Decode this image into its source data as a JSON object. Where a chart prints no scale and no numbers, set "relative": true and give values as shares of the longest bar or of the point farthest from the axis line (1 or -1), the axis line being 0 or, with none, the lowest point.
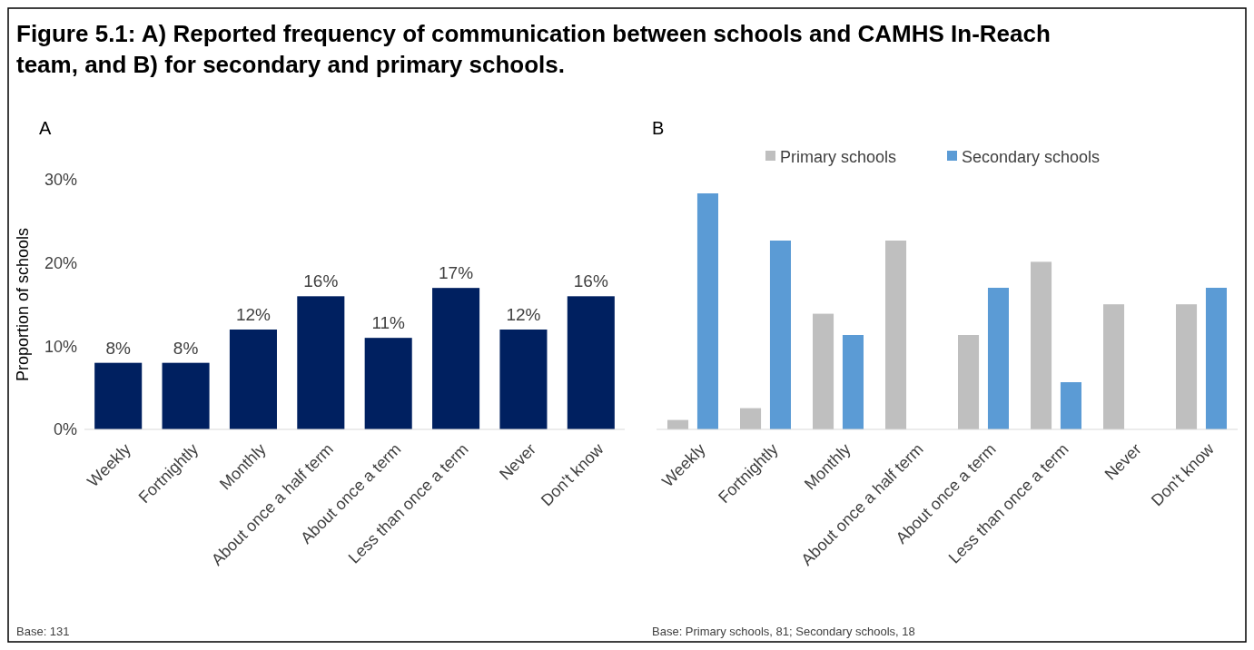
{
  "chart_data": [
    {
      "type": "bar",
      "title": "Figure 5.1: A) Reported frequency of communication between schools and CAMHS In-Reach team, and B) for secondary and primary schools.",
      "subtitle": "A",
      "ylabel": "Proportion of schools",
      "categories": [
        "Weekly",
        "Fortnightly",
        "Monthly",
        "About once a half term",
        "About once a term",
        "Less than once a term",
        "Never",
        "Don't know"
      ],
      "values": [
        8,
        8,
        12,
        16,
        11,
        17,
        12,
        16
      ],
      "value_labels": [
        "8%",
        "8%",
        "12%",
        "16%",
        "11%",
        "17%",
        "12%",
        "16%"
      ],
      "color": "#002060",
      "ylim": [
        0,
        30
      ],
      "yticks": [
        {
          "value": 0,
          "label": "0%"
        },
        {
          "value": 10,
          "label": "10%"
        },
        {
          "value": 20,
          "label": "20%"
        },
        {
          "value": 30,
          "label": "30%"
        }
      ],
      "annotations": [
        "Base: 131"
      ]
    },
    {
      "type": "bar",
      "subtitle": "B",
      "relative": true,
      "legend": "top",
      "categories": [
        "Weekly",
        "Fortnightly",
        "Monthly",
        "About once a half term",
        "About once a term",
        "Less than once a term",
        "Never",
        "Don't know"
      ],
      "series": [
        {
          "name": "Primary schools",
          "color": "#bfbfbf",
          "values": [
            0.04,
            0.09,
            0.49,
            0.8,
            0.4,
            0.71,
            0.53,
            0.53
          ]
        },
        {
          "name": "Secondary schools",
          "color": "#5b9bd5",
          "values": [
            1,
            0.8,
            0.4,
            0,
            0.6,
            0.2,
            0,
            0.6
          ]
        }
      ],
      "annotations": [
        "Base: Primary schools, 81; Secondary schools, 18"
      ]
    }
  ]
}
